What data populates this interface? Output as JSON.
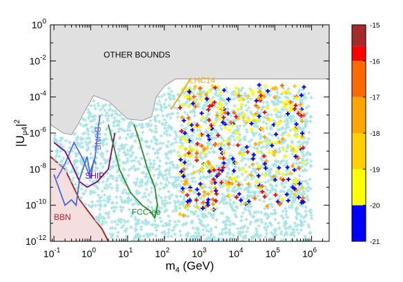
{
  "chart_data": {
    "type": "scatter",
    "title": "",
    "xlabel_main": "m",
    "xlabel_sub": "4",
    "xlabel_unit": " (GeV)",
    "ylabel_main": "|U",
    "ylabel_sub": "μ4",
    "ylabel_close": "|",
    "ylabel_sup": "2",
    "x_scale": "log",
    "y_scale": "log",
    "xlim": [
      0.08,
      3000000
    ],
    "ylim": [
      1e-12,
      1
    ],
    "grid": false,
    "x_ticks": [
      {
        "base": "10",
        "exp": "-1",
        "value": 0.1
      },
      {
        "base": "10",
        "exp": "0",
        "value": 1
      },
      {
        "base": "10",
        "exp": "1",
        "value": 10
      },
      {
        "base": "10",
        "exp": "2",
        "value": 100
      },
      {
        "base": "10",
        "exp": "3",
        "value": 1000
      },
      {
        "base": "10",
        "exp": "4",
        "value": 10000
      },
      {
        "base": "10",
        "exp": "5",
        "value": 100000
      },
      {
        "base": "10",
        "exp": "6",
        "value": 1000000
      }
    ],
    "y_ticks": [
      {
        "base": "10",
        "exp": "0",
        "value": 1
      },
      {
        "base": "10",
        "exp": "-2",
        "value": 0.01
      },
      {
        "base": "10",
        "exp": "-4",
        "value": 0.0001
      },
      {
        "base": "10",
        "exp": "-6",
        "value": 1e-06
      },
      {
        "base": "10",
        "exp": "-8",
        "value": 1e-08
      },
      {
        "base": "10",
        "exp": "-10",
        "value": 1e-10
      },
      {
        "base": "10",
        "exp": "-12",
        "value": 1e-12
      }
    ],
    "colorbar": {
      "range": [
        -21,
        -15
      ],
      "ticks": [
        "-15",
        "-16",
        "-17",
        "-18",
        "-19",
        "-20",
        "-21"
      ],
      "bands": [
        {
          "from": -21,
          "to": -20,
          "color": "#0000ff"
        },
        {
          "from": -20,
          "to": -19,
          "color": "#ffff00"
        },
        {
          "from": -19,
          "to": -18,
          "color": "#ffd000"
        },
        {
          "from": -18,
          "to": -17,
          "color": "#ffa500"
        },
        {
          "from": -17,
          "to": -16,
          "color": "#ff6a00"
        },
        {
          "from": -16,
          "to": -15.6,
          "color": "#ff0000"
        },
        {
          "from": -15.6,
          "to": -15,
          "color": "#a52a2a"
        }
      ]
    },
    "regions": [
      {
        "name": "other_bounds",
        "label": "OTHER BOUNDS",
        "label_at": [
          18,
          0.015
        ],
        "color": "#e0e0e0",
        "edge": "#999999",
        "boundary": [
          [
            0.08,
            3e-06
          ],
          [
            0.18,
            1e-06
          ],
          [
            0.3,
            8e-07
          ],
          [
            0.45,
            3e-06
          ],
          [
            0.6,
            1e-05
          ],
          [
            1.2,
            0.00012
          ],
          [
            3,
            6e-05
          ],
          [
            10,
            6e-06
          ],
          [
            25,
            5e-06
          ],
          [
            45,
            8e-06
          ],
          [
            60,
            0.0001
          ],
          [
            100,
            0.0004
          ],
          [
            200,
            0.001
          ],
          [
            3000000,
            0.001
          ]
        ]
      },
      {
        "name": "bbn",
        "label": "BBN",
        "label_at": [
          0.17,
          1.5e-11
        ],
        "label_color": "#a52a2a",
        "color": "#f5dede",
        "line_color": "#a52a2a",
        "boundary": [
          [
            0.08,
            5e-08
          ],
          [
            0.2,
            1e-08
          ],
          [
            0.5,
            2e-10
          ],
          [
            1,
            3e-11
          ],
          [
            2,
            5e-12
          ],
          [
            3,
            1e-12
          ]
        ]
      }
    ],
    "curves": [
      {
        "name": "LHC14",
        "label": "LHC14",
        "label_at": [
          480,
          0.0006
        ],
        "color": "#ffa500",
        "points": [
          [
            150,
            2e-05
          ],
          [
            250,
            0.0001
          ],
          [
            500,
            0.001
          ]
        ]
      },
      {
        "name": "DUNE",
        "label": "DUNE",
        "label_at": [
          1.3,
          5e-07
        ],
        "color": "#5566ff",
        "points": [
          [
            0.12,
            3e-09
          ],
          [
            0.2,
            2e-08
          ],
          [
            0.35,
            3e-07
          ],
          [
            0.6,
            4e-08
          ],
          [
            0.9,
            5e-09
          ],
          [
            1.3,
            4e-08
          ],
          [
            1.6,
            2e-06
          ],
          [
            1.8,
            1e-05
          ]
        ]
      },
      {
        "name": "SHIP",
        "label": "SHIP",
        "label_at": [
          0.7,
          3e-09
        ],
        "color": "#800080",
        "points": [
          [
            0.1,
            3e-07
          ],
          [
            0.2,
            1e-07
          ],
          [
            0.35,
            1e-08
          ],
          [
            0.5,
            2e-09
          ],
          [
            0.8,
            1e-09
          ],
          [
            1.5,
            2e-09
          ],
          [
            3,
            1e-08
          ],
          [
            4.5,
            1e-06
          ]
        ]
      },
      {
        "name": "BlueSmall",
        "label": "",
        "color": "#4169e1",
        "points": [
          [
            0.1,
            5e-09
          ],
          [
            0.2,
            1e-10
          ],
          [
            0.3,
            2e-10
          ],
          [
            0.4,
            1e-10
          ],
          [
            0.5,
            3e-09
          ],
          [
            0.8,
            5e-08
          ],
          [
            1,
            3e-09
          ],
          [
            1.2,
            3e-08
          ],
          [
            1.4,
            2e-08
          ]
        ]
      },
      {
        "name": "FCC-ee",
        "label": "FCC-ee",
        "label_at": [
          13,
          3e-11
        ],
        "color": "#228b22",
        "points": [
          [
            3,
            3e-06
          ],
          [
            6,
            1e-08
          ],
          [
            12,
            5e-10
          ],
          [
            25,
            1e-10
          ],
          [
            40,
            5e-11
          ],
          [
            55,
            2e-11
          ],
          [
            65,
            1e-10
          ],
          [
            55,
            1e-09
          ],
          [
            35,
            1e-08
          ],
          [
            20,
            5e-07
          ],
          [
            15,
            3e-06
          ]
        ]
      }
    ]
  }
}
